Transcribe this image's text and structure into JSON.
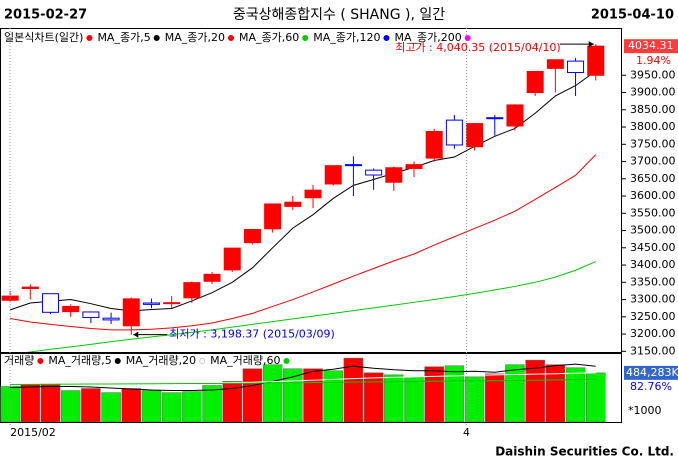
{
  "chart_data": {
    "type": "candlestick",
    "title": "중국상해종합지수 ( SHANG ), 일간",
    "start_date": "2015-02-27",
    "end_date": "2015-04-10",
    "xlim": [
      -0.5,
      30.3
    ],
    "xticks": [
      {
        "value": 0,
        "label": "2015/02"
      },
      {
        "value": 22.6,
        "label": "4"
      }
    ],
    "ylim": [
      3148,
      4087
    ],
    "yticks": [
      {
        "value": 3150,
        "label": "3150.00"
      },
      {
        "value": 3200,
        "label": "3200.00"
      },
      {
        "value": 3250,
        "label": "3250.00"
      },
      {
        "value": 3300,
        "label": "3300.00"
      },
      {
        "value": 3350,
        "label": "3350.00"
      },
      {
        "value": 3400,
        "label": "3400.00"
      },
      {
        "value": 3450,
        "label": "3450.00"
      },
      {
        "value": 3500,
        "label": "3500.00"
      },
      {
        "value": 3550,
        "label": "3550.00"
      },
      {
        "value": 3600,
        "label": "3600.00"
      },
      {
        "value": 3650,
        "label": "3650.00"
      },
      {
        "value": 3700,
        "label": "3700.00"
      },
      {
        "value": 3750,
        "label": "3750.00"
      },
      {
        "value": 3800,
        "label": "3800.00"
      },
      {
        "value": 3850,
        "label": "3850.00"
      },
      {
        "value": 3900,
        "label": "3900.00"
      },
      {
        "value": 3950,
        "label": "3950.00"
      }
    ],
    "price": {
      "name": "일본식차트(일간)",
      "color": "#ff0000",
      "down_color": "#0000ff",
      "open": [
        3298,
        3332,
        3317,
        3265,
        3264,
        3246,
        3224,
        3290,
        3289,
        3305,
        3353,
        3386,
        3465,
        3505,
        3570,
        3595,
        3635,
        3691,
        3675,
        3640,
        3680,
        3710,
        3820,
        3743,
        3827,
        3803,
        3900,
        3970,
        3991,
        3950
      ],
      "high": [
        3325,
        3344,
        3317,
        3286,
        3265,
        3262,
        3306,
        3303,
        3310,
        3352,
        3380,
        3450,
        3503,
        3577,
        3600,
        3632,
        3688,
        3715,
        3680,
        3685,
        3700,
        3795,
        3835,
        3810,
        3835,
        3866,
        3962,
        3995,
        4000,
        4040.35
      ],
      "low": [
        3292,
        3300,
        3258,
        3250,
        3232,
        3229,
        3198.37,
        3275,
        3276,
        3290,
        3345,
        3380,
        3460,
        3494,
        3560,
        3565,
        3630,
        3600,
        3618,
        3615,
        3655,
        3700,
        3737,
        3732,
        3775,
        3790,
        3890,
        3900,
        3890,
        3935
      ],
      "close": [
        3310,
        3336,
        3263,
        3280,
        3248,
        3241,
        3302,
        3286,
        3291,
        3349,
        3373,
        3449,
        3503,
        3577,
        3582,
        3617,
        3688,
        3689,
        3661,
        3682,
        3691,
        3787,
        3748,
        3810,
        3826,
        3864,
        3961,
        3995,
        3958,
        4034.31
      ]
    },
    "series": [
      {
        "name": "MA_종가,5",
        "color": "#000000",
        "values": [
          3270,
          3290,
          3295,
          3300,
          3288,
          3274,
          3267,
          3271,
          3274,
          3296,
          3320,
          3350,
          3392,
          3450,
          3507,
          3546,
          3593,
          3631,
          3648,
          3666,
          3683,
          3703,
          3713,
          3744,
          3773,
          3796,
          3840,
          3890,
          3920,
          3962
        ]
      },
      {
        "name": "MA_종가,20",
        "color": "#ff0000",
        "values": [
          3245,
          3235,
          3228,
          3222,
          3216,
          3212,
          3212,
          3214,
          3218,
          3224,
          3232,
          3245,
          3260,
          3280,
          3300,
          3322,
          3345,
          3368,
          3390,
          3412,
          3432,
          3458,
          3482,
          3506,
          3530,
          3556,
          3590,
          3625,
          3660,
          3720
        ]
      },
      {
        "name": "MA_종가,60",
        "color": "#00cc00",
        "values": [
          3140,
          3148,
          3156,
          3163,
          3170,
          3178,
          3185,
          3192,
          3198,
          3205,
          3212,
          3220,
          3228,
          3236,
          3244,
          3252,
          3260,
          3268,
          3276,
          3284,
          3292,
          3300,
          3309,
          3318,
          3328,
          3338,
          3350,
          3365,
          3385,
          3410
        ]
      },
      {
        "name": "MA_종가,120",
        "color": "#0000ff"
      },
      {
        "name": "MA_종가,200",
        "color": "#ff00ff"
      }
    ],
    "annotations": [
      {
        "text": "최고가 : 4,040.35 (2015/04/10)",
        "color": "#ff0000",
        "index": 29,
        "value": 4040.35
      },
      {
        "text": "최저가 : 3,198.37 (2015/03/09)",
        "color": "#0000ff",
        "index": 6,
        "value": 3198.37
      }
    ],
    "last_label": "4034.31",
    "change_label": "1.94%",
    "volume": {
      "name": "거래량",
      "color": "#ff0000",
      "vlim": [
        0,
        680000
      ],
      "values": [
        350000,
        370000,
        370000,
        310000,
        330000,
        290000,
        330000,
        310000,
        290000,
        300000,
        360000,
        400000,
        525000,
        565000,
        525000,
        525000,
        505000,
        630000,
        485000,
        465000,
        445000,
        545000,
        555000,
        445000,
        475000,
        565000,
        610000,
        565000,
        535000,
        484283
      ],
      "colors": [
        "#00ee00",
        "#ff0000",
        "#ff0000",
        "#00ee00",
        "#ff0000",
        "#00ee00",
        "#ff0000",
        "#00ee00",
        "#00ee00",
        "#00ee00",
        "#00ee00",
        "#ff0000",
        "#ff0000",
        "#00ee00",
        "#00ee00",
        "#ff0000",
        "#00ee00",
        "#ff0000",
        "#ff0000",
        "#00ee00",
        "#00ee00",
        "#ff0000",
        "#00ee00",
        "#00ee00",
        "#ff0000",
        "#00ee00",
        "#ff0000",
        "#ff0000",
        "#00ee00",
        "#00ee00"
      ],
      "series": [
        {
          "name": "MA_거래량,5",
          "color": "#000000",
          "values": [
            340000,
            345000,
            350000,
            350000,
            345000,
            335000,
            325000,
            315000,
            310000,
            310000,
            315000,
            330000,
            360000,
            400000,
            445000,
            500000,
            520000,
            550000,
            530000,
            515000,
            505000,
            505000,
            495000,
            500000,
            490000,
            515000,
            530000,
            555000,
            570000,
            550000
          ]
        },
        {
          "name": "MA_거래량,20",
          "color": "#ffffff",
          "values": [
            400000,
            398000,
            396000,
            394000,
            392000,
            390000,
            388000,
            386000,
            384000,
            384000,
            385000,
            388000,
            392000,
            398000,
            405000,
            412000,
            420000,
            428000,
            435000,
            440000,
            445000,
            450000,
            455000,
            460000,
            464000,
            468000,
            472000,
            476000,
            480000,
            484000
          ]
        },
        {
          "name": "MA_거래량,60",
          "color": "#00cc00",
          "values": [
            370000,
            371000,
            372000,
            373000,
            374000,
            375000,
            376000,
            377000,
            378000,
            379000,
            380000,
            381000,
            383000,
            385000,
            387000,
            389000,
            391000,
            393000,
            395000,
            397000,
            399000,
            401000,
            403000,
            405000,
            407000,
            409000,
            412000,
            415000,
            418000,
            421000
          ]
        }
      ],
      "last_label": "484,283K",
      "ratio_label": "82.76%",
      "unit_label": "*1000"
    },
    "footer": "Daishin Securities Co. Ltd."
  }
}
